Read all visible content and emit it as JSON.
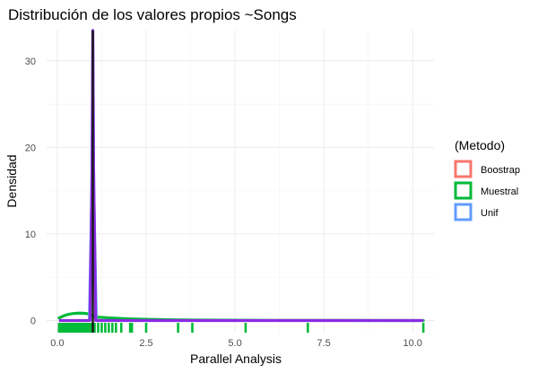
{
  "chart_data": {
    "type": "density",
    "title": "Distribución de los valores propios ~Songs",
    "xlabel": "Parallel Analysis",
    "ylabel": "Densidad",
    "xlim": [
      -0.3,
      10.6
    ],
    "ylim": [
      -1.4,
      33.5
    ],
    "x_ticks": [
      0,
      2.5,
      5,
      7.5,
      10
    ],
    "x_tick_labels": [
      "0.0",
      "2.5",
      "5.0",
      "7.5",
      "10.0"
    ],
    "y_ticks": [
      0,
      10,
      20,
      30
    ],
    "y_tick_labels": [
      "0",
      "10",
      "20",
      "30"
    ],
    "grid": true,
    "legend": {
      "title": "(Metodo)",
      "position": "right",
      "entries": [
        {
          "label": "Boostrap",
          "color": "#F8766D"
        },
        {
          "label": "Muestral",
          "color": "#00BA38"
        },
        {
          "label": "Unif",
          "color": "#619CFF"
        }
      ]
    },
    "series": [
      {
        "name": "Muestral",
        "color": "#00BA38",
        "curve": [
          [
            0.05,
            0.3
          ],
          [
            0.3,
            0.7
          ],
          [
            0.6,
            0.85
          ],
          [
            0.9,
            0.75
          ],
          [
            1.0,
            0.5
          ],
          [
            1.1,
            0.4
          ],
          [
            1.5,
            0.3
          ],
          [
            2.0,
            0.2
          ],
          [
            3.0,
            0.1
          ],
          [
            4.0,
            0.05
          ],
          [
            6.0,
            0.02
          ],
          [
            10.3,
            0.0
          ]
        ],
        "rug": [
          0.05,
          0.1,
          0.15,
          0.2,
          0.25,
          0.3,
          0.35,
          0.4,
          0.45,
          0.5,
          0.55,
          0.6,
          0.65,
          0.7,
          0.75,
          0.8,
          0.85,
          0.9,
          0.95,
          1.05,
          1.15,
          1.25,
          1.35,
          1.45,
          1.55,
          1.65,
          1.8,
          2.05,
          2.1,
          2.5,
          3.4,
          3.8,
          5.3,
          7.05,
          10.3
        ]
      },
      {
        "name": "Unif",
        "color": "#619CFF",
        "curve": [
          [
            0.05,
            0.0
          ],
          [
            0.9,
            0.0
          ],
          [
            0.97,
            15.0
          ],
          [
            1.0,
            33.5
          ],
          [
            1.03,
            15.0
          ],
          [
            1.1,
            0.0
          ],
          [
            10.3,
            0.0
          ]
        ]
      },
      {
        "name": "Boostrap",
        "color": "#F8766D",
        "curve": [
          [
            0.05,
            0.0
          ],
          [
            0.92,
            0.0
          ],
          [
            0.98,
            18.0
          ],
          [
            1.0,
            33.5
          ],
          [
            1.02,
            18.0
          ],
          [
            1.08,
            0.0
          ],
          [
            10.3,
            0.0
          ]
        ]
      }
    ],
    "overlay_color": "#8A2BE2",
    "vline": {
      "x": 1.0,
      "color": "#1a1a1a"
    }
  }
}
